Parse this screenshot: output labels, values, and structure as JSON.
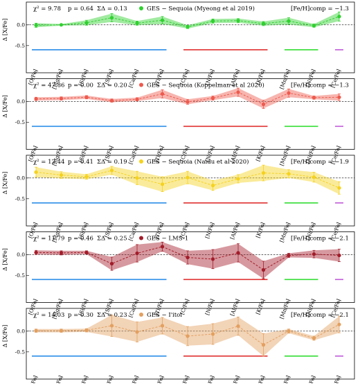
{
  "chart_data": [
    {
      "type": "line",
      "ylabel": "Δ [X/Fe]",
      "ylim": [
        -0.72,
        0.48
      ],
      "yticks": [
        -0.5,
        0.0
      ],
      "categories": [
        "[O/Fe]",
        "[Mg/Fe]",
        "[Si/Fe]",
        "[S/Fe]",
        "[Ca/Fe]",
        "[Ti/Fe]",
        "[C/Fe]",
        "[N/Fe]",
        "[Al/Fe]",
        "[K/Fe]",
        "[Mn/Fe]",
        "[Ni/Fe]",
        "[Ce/Fe]"
      ],
      "chi2_label": "χ² = 9.78",
      "p_label": "p = 0.64",
      "sigma_label": "ΣΔ = 0.13",
      "legend": "GES − Sequoia (Myeong et al 2019)",
      "feh_label": "[Fe/H]comp = −1.3",
      "color": "#2fd12f",
      "values": [
        -0.01,
        0.0,
        0.05,
        0.17,
        0.04,
        0.11,
        -0.05,
        0.09,
        0.1,
        0.03,
        0.09,
        -0.02,
        0.2
      ],
      "lower": [
        -0.06,
        -0.02,
        -0.01,
        0.07,
        -0.01,
        0.02,
        -0.09,
        0.04,
        0.05,
        -0.02,
        0.01,
        -0.06,
        0.09
      ],
      "upper": [
        0.04,
        0.02,
        0.11,
        0.27,
        0.09,
        0.2,
        -0.01,
        0.14,
        0.15,
        0.08,
        0.17,
        0.02,
        0.31
      ]
    },
    {
      "type": "line",
      "ylabel": "Δ [X/Fe]",
      "ylim": [
        -0.72,
        0.48
      ],
      "yticks": [
        -0.5,
        0.0
      ],
      "categories": [
        "[O/Fe]",
        "[Mg/Fe]",
        "[Si/Fe]",
        "[S/Fe]",
        "[Ca/Fe]",
        "[Ti/Fe]",
        "[C/Fe]",
        "[N/Fe]",
        "[Al/Fe]",
        "[K/Fe]",
        "[Mn/Fe]",
        "[Ni/Fe]",
        "[Ce/Fe]"
      ],
      "chi2_label": "χ² = 47.86",
      "p_label": "p = 0.00",
      "sigma_label": "ΣΔ = 0.20",
      "legend": "GES − Sequoia (Koppelman et al 2020)",
      "feh_label": "[Fe/H]comp = −1.3",
      "color": "#ee5a4e",
      "values": [
        0.06,
        0.07,
        0.1,
        0.02,
        0.05,
        0.18,
        -0.01,
        0.08,
        0.22,
        -0.07,
        0.2,
        0.09,
        0.1
      ],
      "lower": [
        0.02,
        0.03,
        0.06,
        -0.02,
        0.01,
        0.08,
        -0.07,
        0.03,
        0.12,
        -0.17,
        0.1,
        0.05,
        0.02
      ],
      "upper": [
        0.1,
        0.11,
        0.14,
        0.06,
        0.09,
        0.28,
        0.05,
        0.13,
        0.32,
        0.03,
        0.3,
        0.13,
        0.18
      ]
    },
    {
      "type": "line",
      "ylabel": "Δ [X/Fe]",
      "ylim": [
        -0.72,
        0.48
      ],
      "yticks": [
        -0.5,
        0.0
      ],
      "categories": [
        "[O/Fe]",
        "[Mg/Fe]",
        "[Si/Fe]",
        "[S/Fe]",
        "[Ca/Fe]",
        "[Ti/Fe]",
        "[C/Fe]",
        "[N/Fe]",
        "[Al/Fe]",
        "[K/Fe]",
        "[Mn/Fe]",
        "[Ni/Fe]",
        "[Ce/Fe]"
      ],
      "chi2_label": "χ² = 12.44",
      "p_label": "p = 0.41",
      "sigma_label": "ΣΔ = 0.19",
      "legend": "GES − Sequoia (Naidu et al 2020)",
      "feh_label": "[Fe/H]comp = −1.9",
      "color": "#f5d21e",
      "values": [
        0.14,
        0.07,
        0.03,
        0.18,
        0.0,
        -0.15,
        0.01,
        -0.18,
        -0.02,
        0.12,
        0.1,
        0.02,
        -0.24
      ],
      "lower": [
        0.02,
        -0.01,
        -0.03,
        0.08,
        -0.16,
        -0.33,
        -0.14,
        -0.3,
        -0.12,
        -0.07,
        0.0,
        -0.1,
        -0.39
      ],
      "upper": [
        0.26,
        0.15,
        0.09,
        0.28,
        0.16,
        0.03,
        0.16,
        -0.06,
        0.08,
        0.31,
        0.2,
        0.14,
        -0.09
      ]
    },
    {
      "type": "line",
      "ylabel": "Δ [X/Fe]",
      "ylim": [
        -0.72,
        0.48
      ],
      "yticks": [
        -0.5,
        0.0
      ],
      "categories": [
        "[O/Fe]",
        "[Mg/Fe]",
        "[Si/Fe]",
        "[S/Fe]",
        "[Ca/Fe]",
        "[Ti/Fe]",
        "[C/Fe]",
        "[N/Fe]",
        "[Al/Fe]",
        "[K/Fe]",
        "[Mn/Fe]",
        "[Ni/Fe]",
        "[Ce/Fe]"
      ],
      "chi2_label": "χ² = 11.79",
      "p_label": "p = 0.46",
      "sigma_label": "ΣΔ = 0.25",
      "legend": "GES − LMS-1",
      "feh_label": "[Fe/H]comp = −2.1",
      "color": "#a31c2a",
      "values": [
        0.05,
        0.04,
        0.05,
        -0.22,
        0.03,
        0.19,
        -0.07,
        -0.11,
        0.04,
        -0.37,
        -0.02,
        0.01,
        -0.02
      ],
      "lower": [
        0.0,
        -0.01,
        0.01,
        -0.38,
        -0.18,
        0.08,
        -0.23,
        -0.34,
        -0.18,
        -0.58,
        -0.07,
        -0.08,
        -0.17
      ],
      "upper": [
        0.1,
        0.09,
        0.09,
        -0.06,
        0.24,
        0.3,
        0.09,
        0.12,
        0.26,
        -0.16,
        0.03,
        0.1,
        0.13
      ]
    },
    {
      "type": "line",
      "ylabel": "Δ [X/Fe]",
      "ylim": [
        -0.72,
        0.48
      ],
      "yticks": [
        -0.5,
        0.0
      ],
      "categories": [
        "[O/Fe]",
        "[Mg/Fe]",
        "[Si/Fe]",
        "[S/Fe]",
        "[Ca/Fe]",
        "[Ti/Fe]",
        "[C/Fe]",
        "[N/Fe]",
        "[Al/Fe]",
        "[K/Fe]",
        "[Mn/Fe]",
        "[Ni/Fe]",
        "[Ce/Fe]"
      ],
      "chi2_label": "χ² = 14.03",
      "p_label": "p = 0.30",
      "sigma_label": "ΣΔ = 0.23",
      "legend": "GES − I'itoi",
      "feh_label": "[Fe/H]comp = −2.1",
      "color": "#e3a060",
      "values": [
        0.01,
        0.01,
        0.02,
        0.13,
        -0.02,
        0.13,
        -0.12,
        -0.07,
        0.12,
        -0.33,
        0.0,
        -0.17,
        0.16
      ],
      "lower": [
        -0.03,
        -0.03,
        -0.02,
        -0.13,
        -0.26,
        -0.07,
        -0.35,
        -0.32,
        -0.1,
        -0.6,
        -0.05,
        -0.22,
        -0.04
      ],
      "upper": [
        0.05,
        0.05,
        0.06,
        0.39,
        0.22,
        0.33,
        0.11,
        0.18,
        0.34,
        -0.06,
        0.05,
        -0.12,
        0.36
      ]
    }
  ],
  "groups": [
    {
      "start": 0,
      "end": 5,
      "color": "#2a8ee8"
    },
    {
      "start": 6,
      "end": 9,
      "color": "#e03030"
    },
    {
      "start": 10,
      "end": 11,
      "color": "#33dd33"
    },
    {
      "start": 12,
      "end": 12,
      "color": "#c05ad8"
    }
  ]
}
